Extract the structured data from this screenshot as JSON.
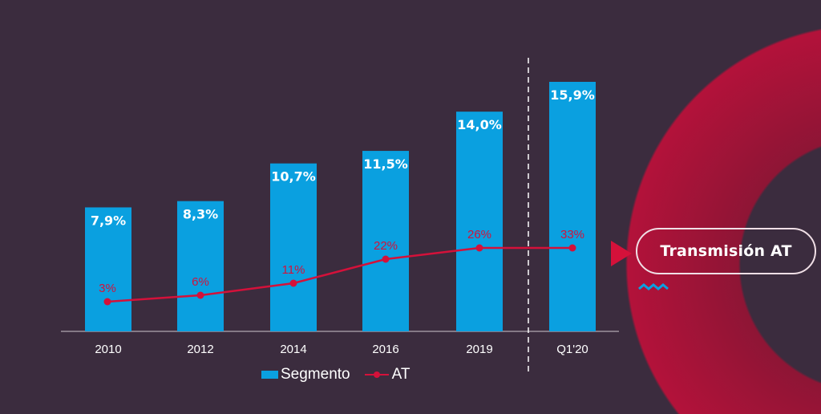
{
  "chart_data": {
    "type": "bar",
    "categories": [
      "2010",
      "2012",
      "2014",
      "2016",
      "2019",
      "Q1'20"
    ],
    "series": [
      {
        "name": "Segmento",
        "type": "bar",
        "values": [
          7.9,
          8.3,
          10.7,
          11.5,
          14.0,
          15.9
        ],
        "labels": [
          "7,9%",
          "8,3%",
          "10,7%",
          "11,5%",
          "14,0%",
          "15,9%"
        ],
        "color": "#0aa0e0"
      },
      {
        "name": "AT",
        "type": "line",
        "values": [
          3,
          6,
          11,
          22,
          26,
          33
        ],
        "labels": [
          "3%",
          "6%",
          "11%",
          "22%",
          "26%",
          "33%"
        ],
        "color": "#d4113a"
      }
    ],
    "legend": "bottom",
    "grid": false,
    "annotation_divider_before": "Q1'20"
  },
  "callout": {
    "label": "Transmisión AT"
  },
  "colors": {
    "background": "#3b2c3e",
    "accent": "#d4113a",
    "bar": "#0aa0e0"
  }
}
